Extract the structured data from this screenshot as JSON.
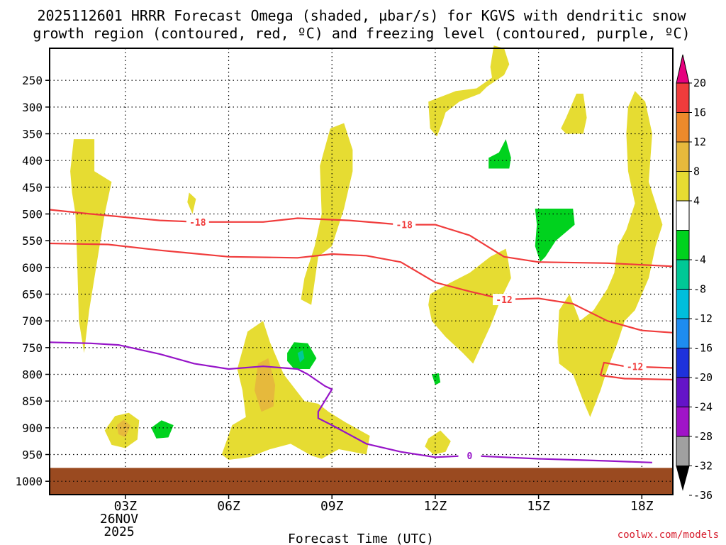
{
  "chart_data": {
    "type": "heatmap",
    "title_line1": "2025112601 HRRR Forecast Omega (shaded, µbar/s) for KGVS with dendritic snow",
    "title_line2": "growth region (contoured, red, ºC) and freezing level (contoured, purple, ºC)",
    "xlabel": "Forecast Time (UTC)",
    "credit": "coolwx.com/models",
    "date_label": [
      "26NOV",
      "2025"
    ],
    "y_axis": {
      "scale": "pressure (hPa, reversed)",
      "ticks": [
        250,
        300,
        350,
        400,
        450,
        500,
        550,
        600,
        650,
        700,
        750,
        800,
        850,
        900,
        950,
        1000
      ],
      "range": [
        1025,
        190
      ]
    },
    "x_axis": {
      "range_hours": [
        0.8,
        18.9
      ],
      "ticks": [
        {
          "hour": 3,
          "label": "03Z"
        },
        {
          "hour": 6,
          "label": "06Z"
        },
        {
          "hour": 9,
          "label": "09Z"
        },
        {
          "hour": 12,
          "label": "12Z"
        },
        {
          "hour": 15,
          "label": "15Z"
        },
        {
          "hour": 18,
          "label": "18Z"
        }
      ],
      "grid": "dotted"
    },
    "colorbar": {
      "labels": [
        "20",
        "16",
        "12",
        "8",
        "4",
        "-4",
        "-8",
        "-12",
        "-16",
        "-20",
        "-24",
        "-28",
        "-32",
        "-36"
      ],
      "bins": [
        {
          "range": "16 to 20",
          "color": "#f03c3c"
        },
        {
          "range": "12 to 16",
          "color": "#ed8a2b"
        },
        {
          "range": "8 to 12",
          "color": "#e6b93c"
        },
        {
          "range": "4 to 8",
          "color": "#e6dc32"
        },
        {
          "range": "-4 to 4",
          "color": "#ffffff"
        },
        {
          "range": "-8 to -4",
          "color": "#00d21e"
        },
        {
          "range": "-12 to -8",
          "color": "#00c896"
        },
        {
          "range": "-16 to -12",
          "color": "#00bedc"
        },
        {
          "range": "-20 to -16",
          "color": "#1e8cf0"
        },
        {
          "range": "-24 to -20",
          "color": "#1e32dc"
        },
        {
          "range": "-28 to -24",
          "color": "#6414c8"
        },
        {
          "range": "-32 to -28",
          "color": "#a014c8"
        },
        {
          "range": "-36 to -32",
          "color": "#a0a0a0"
        }
      ],
      "top_arrow_color": "#e6007e",
      "bottom_arrow_color": "#000000"
    },
    "shaded_regions": [
      {
        "level": "4 to 8",
        "color": "#e6dc32",
        "points": [
          [
            1.5,
            360
          ],
          [
            2.1,
            360
          ],
          [
            2.1,
            420
          ],
          [
            2.6,
            440
          ],
          [
            2.4,
            500
          ],
          [
            2.2,
            580
          ],
          [
            1.95,
            680
          ],
          [
            1.8,
            760
          ],
          [
            1.65,
            700
          ],
          [
            1.6,
            590
          ],
          [
            1.55,
            500
          ],
          [
            1.45,
            460
          ],
          [
            1.4,
            420
          ]
        ]
      },
      {
        "level": "4 to 8",
        "color": "#e6dc32",
        "points": [
          [
            2.4,
            905
          ],
          [
            2.7,
            878
          ],
          [
            3.1,
            872
          ],
          [
            3.4,
            886
          ],
          [
            3.35,
            922
          ],
          [
            3.0,
            938
          ],
          [
            2.6,
            932
          ]
        ]
      },
      {
        "level": "8 to 12",
        "color": "#e6b93c",
        "points": [
          [
            2.75,
            895
          ],
          [
            2.95,
            885
          ],
          [
            3.15,
            896
          ],
          [
            3.0,
            918
          ],
          [
            2.8,
            912
          ]
        ]
      },
      {
        "level": "4 to 8",
        "color": "#e6dc32",
        "points": [
          [
            4.85,
            460
          ],
          [
            5.05,
            472
          ],
          [
            4.95,
            500
          ],
          [
            4.8,
            478
          ]
        ]
      },
      {
        "level": "4 to 8",
        "color": "#e6dc32",
        "points": [
          [
            8.4,
            670
          ],
          [
            8.6,
            580
          ],
          [
            9.0,
            560
          ],
          [
            9.35,
            490
          ],
          [
            9.6,
            420
          ],
          [
            9.6,
            380
          ],
          [
            9.35,
            330
          ],
          [
            8.95,
            340
          ],
          [
            8.65,
            410
          ],
          [
            8.7,
            500
          ],
          [
            8.5,
            560
          ],
          [
            8.2,
            620
          ],
          [
            8.1,
            660
          ]
        ]
      },
      {
        "level": "4 to 8",
        "color": "#e6dc32",
        "points": [
          [
            5.8,
            950
          ],
          [
            6.1,
            895
          ],
          [
            6.5,
            880
          ],
          [
            6.4,
            830
          ],
          [
            6.25,
            790
          ],
          [
            6.55,
            720
          ],
          [
            7.0,
            700
          ],
          [
            7.2,
            740
          ],
          [
            7.6,
            800
          ],
          [
            8.2,
            850
          ],
          [
            8.6,
            855
          ],
          [
            8.9,
            870
          ],
          [
            9.4,
            890
          ],
          [
            10.1,
            915
          ],
          [
            10.0,
            950
          ],
          [
            9.2,
            940
          ],
          [
            8.7,
            958
          ],
          [
            8.4,
            952
          ],
          [
            7.8,
            930
          ],
          [
            7.2,
            940
          ],
          [
            6.6,
            955
          ],
          [
            6.0,
            960
          ]
        ]
      },
      {
        "level": "8 to 12",
        "color": "#e6b93c",
        "points": [
          [
            6.85,
            780
          ],
          [
            7.15,
            770
          ],
          [
            7.35,
            820
          ],
          [
            7.3,
            860
          ],
          [
            6.95,
            870
          ],
          [
            6.75,
            830
          ]
        ]
      },
      {
        "level": "4 to 8",
        "color": "#e6dc32",
        "points": [
          [
            11.8,
            920
          ],
          [
            12.15,
            905
          ],
          [
            12.45,
            925
          ],
          [
            12.3,
            945
          ],
          [
            11.95,
            950
          ],
          [
            11.7,
            935
          ]
        ]
      },
      {
        "level": "4 to 8",
        "color": "#e6dc32",
        "points": [
          [
            11.8,
            290
          ],
          [
            12.2,
            280
          ],
          [
            12.6,
            270
          ],
          [
            13.2,
            265
          ],
          [
            13.65,
            245
          ],
          [
            13.6,
            225
          ],
          [
            13.7,
            185
          ],
          [
            14.0,
            190
          ],
          [
            14.15,
            220
          ],
          [
            14.0,
            240
          ],
          [
            13.5,
            262
          ],
          [
            13.3,
            275
          ],
          [
            12.7,
            290
          ],
          [
            12.3,
            310
          ],
          [
            12.2,
            330
          ],
          [
            12.05,
            355
          ],
          [
            11.85,
            340
          ]
        ]
      },
      {
        "level": "4 to 8",
        "color": "#e6dc32",
        "points": [
          [
            11.85,
            650
          ],
          [
            12.4,
            630
          ],
          [
            13.0,
            610
          ],
          [
            13.6,
            580
          ],
          [
            13.9,
            570
          ],
          [
            14.05,
            565
          ],
          [
            14.1,
            580
          ],
          [
            14.2,
            620
          ],
          [
            13.9,
            660
          ],
          [
            13.6,
            710
          ],
          [
            13.1,
            780
          ],
          [
            12.8,
            760
          ],
          [
            12.3,
            730
          ],
          [
            11.9,
            700
          ],
          [
            11.8,
            670
          ]
        ]
      },
      {
        "level": "4 to 8",
        "color": "#e6dc32",
        "points": [
          [
            15.8,
            350
          ],
          [
            16.3,
            350
          ],
          [
            16.4,
            320
          ],
          [
            16.3,
            275
          ],
          [
            16.1,
            275
          ],
          [
            15.8,
            320
          ],
          [
            15.65,
            340
          ]
        ]
      },
      {
        "level": "4 to 8",
        "color": "#e6dc32",
        "points": [
          [
            15.55,
            740
          ],
          [
            15.6,
            680
          ],
          [
            15.9,
            650
          ],
          [
            16.2,
            700
          ],
          [
            16.6,
            680
          ],
          [
            17.0,
            640
          ],
          [
            17.2,
            610
          ],
          [
            17.3,
            560
          ],
          [
            17.55,
            530
          ],
          [
            17.8,
            480
          ],
          [
            17.6,
            420
          ],
          [
            17.55,
            350
          ],
          [
            17.6,
            300
          ],
          [
            17.8,
            270
          ],
          [
            18.1,
            290
          ],
          [
            18.3,
            350
          ],
          [
            18.2,
            440
          ],
          [
            18.6,
            520
          ],
          [
            18.4,
            560
          ],
          [
            18.2,
            620
          ],
          [
            17.8,
            680
          ],
          [
            17.5,
            700
          ],
          [
            17.3,
            740
          ],
          [
            17.0,
            790
          ],
          [
            16.8,
            830
          ],
          [
            16.5,
            880
          ],
          [
            16.3,
            850
          ],
          [
            16.0,
            800
          ],
          [
            15.6,
            780
          ]
        ]
      },
      {
        "level": "-8 to -4",
        "color": "#00d21e",
        "points": [
          [
            13.55,
            395
          ],
          [
            13.85,
            385
          ],
          [
            14.05,
            360
          ],
          [
            14.2,
            395
          ],
          [
            14.15,
            415
          ],
          [
            13.55,
            415
          ]
        ]
      },
      {
        "level": "-8 to -4",
        "color": "#00d21e",
        "points": [
          [
            14.9,
            490
          ],
          [
            15.0,
            490
          ],
          [
            15.3,
            490
          ],
          [
            16.0,
            490
          ],
          [
            16.05,
            520
          ],
          [
            15.5,
            550
          ],
          [
            15.2,
            580
          ],
          [
            15.05,
            590
          ],
          [
            14.9,
            560
          ],
          [
            14.95,
            520
          ]
        ]
      },
      {
        "level": "-8 to -4",
        "color": "#00d21e",
        "points": [
          [
            7.7,
            760
          ],
          [
            7.9,
            740
          ],
          [
            8.3,
            742
          ],
          [
            8.55,
            770
          ],
          [
            8.35,
            790
          ],
          [
            7.9,
            790
          ],
          [
            7.7,
            775
          ]
        ]
      },
      {
        "level": "-12 to -8",
        "color": "#00c896",
        "points": [
          [
            8.0,
            760
          ],
          [
            8.15,
            755
          ],
          [
            8.2,
            770
          ],
          [
            8.07,
            778
          ]
        ]
      },
      {
        "level": "-8 to -4",
        "color": "#00d21e",
        "points": [
          [
            3.75,
            900
          ],
          [
            4.05,
            886
          ],
          [
            4.4,
            895
          ],
          [
            4.25,
            918
          ],
          [
            3.9,
            920
          ]
        ]
      },
      {
        "level": "-8 to -4",
        "color": "#00d21e",
        "points": [
          [
            11.9,
            800
          ],
          [
            12.1,
            798
          ],
          [
            12.15,
            815
          ],
          [
            12.0,
            820
          ]
        ]
      }
    ],
    "contours": [
      {
        "name": "-18",
        "color": "#f03c3c",
        "label_hours": [
          5.1,
          11.1
        ],
        "points": [
          [
            0.8,
            492
          ],
          [
            2,
            500
          ],
          [
            4,
            512
          ],
          [
            5.1,
            515
          ],
          [
            7,
            515
          ],
          [
            8,
            508
          ],
          [
            9.5,
            512
          ],
          [
            11,
            520
          ],
          [
            12,
            520
          ],
          [
            13,
            540
          ],
          [
            14,
            580
          ],
          [
            15,
            590
          ],
          [
            17,
            592
          ],
          [
            18.9,
            598
          ]
        ]
      },
      {
        "name": "-12",
        "color": "#f03c3c",
        "label_hours": [
          14.0
        ],
        "points": [
          [
            0.8,
            555
          ],
          [
            2.5,
            557
          ],
          [
            4,
            568
          ],
          [
            6,
            580
          ],
          [
            8,
            582
          ],
          [
            9,
            575
          ],
          [
            10,
            578
          ],
          [
            11,
            590
          ],
          [
            12,
            628
          ],
          [
            13,
            645
          ],
          [
            14,
            660
          ],
          [
            15,
            658
          ],
          [
            16,
            668
          ],
          [
            17,
            700
          ],
          [
            18,
            718
          ],
          [
            18.9,
            722
          ]
        ]
      },
      {
        "name": "-12",
        "color": "#f03c3c",
        "label_hours": [
          17.8
        ],
        "points": [
          [
            16.8,
            802
          ],
          [
            16.9,
            778
          ],
          [
            17.5,
            785
          ],
          [
            18.9,
            788
          ]
        ]
      },
      {
        "name": "-12b",
        "color": "#f03c3c",
        "label_hours": [],
        "points": [
          [
            16.8,
            802
          ],
          [
            17.5,
            808
          ],
          [
            18.9,
            810
          ]
        ]
      },
      {
        "name": "0",
        "color": "#9614c8",
        "label_hours": [
          13.0
        ],
        "points": [
          [
            0.8,
            740
          ],
          [
            2,
            742
          ],
          [
            2.8,
            745
          ],
          [
            4,
            762
          ],
          [
            5,
            780
          ],
          [
            6,
            790
          ],
          [
            7,
            785
          ],
          [
            8,
            790
          ],
          [
            8.3,
            800
          ],
          [
            8.8,
            822
          ],
          [
            9.0,
            828
          ],
          [
            8.6,
            870
          ],
          [
            8.6,
            882
          ],
          [
            9.0,
            895
          ],
          [
            10,
            930
          ],
          [
            11,
            945
          ],
          [
            12,
            955
          ],
          [
            13,
            952
          ],
          [
            14,
            955
          ],
          [
            15,
            958
          ],
          [
            16,
            960
          ],
          [
            17,
            962
          ],
          [
            18.3,
            965
          ]
        ]
      }
    ],
    "ground_pressure": 975
  }
}
